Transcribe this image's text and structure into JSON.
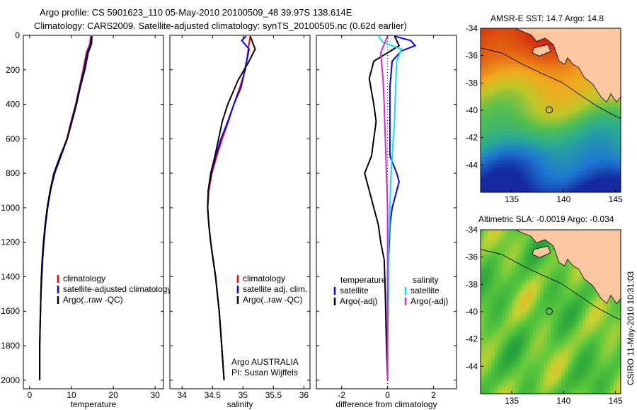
{
  "header": {
    "line1": "Argo profile: CS 5901623_110 05-May-2010 20100509_48 39.97S 138.614E",
    "line2": "Climatology: CARS2009. Satellite-adjusted climatology: synTS_20100505.nc (0.62d earlier)"
  },
  "side_caption": "CSIRO 11-May-2010 10:31:03",
  "maps": [
    {
      "title": "AMSR-E SST: 14.7 Argo: 14.8",
      "yticks": [
        -34,
        -36,
        -38,
        -40,
        -42,
        -44
      ],
      "xticks": [
        135,
        140,
        145
      ],
      "xlim": [
        132,
        145.5
      ],
      "ylim": [
        -46,
        -34
      ],
      "float_lon": 138.614,
      "float_lat": -39.97
    },
    {
      "title": "Altimetric SLA: -0.0019 Argo: -0.034",
      "yticks": [
        -34,
        -36,
        -38,
        -40,
        -42,
        -44
      ],
      "xticks": [
        135,
        140,
        145
      ],
      "xlim": [
        132,
        145.5
      ],
      "ylim": [
        -46,
        -34
      ],
      "float_lon": 138.614,
      "float_lat": -39.97
    }
  ],
  "colors": {
    "climatology": "#ff0000",
    "satellite": "#0000ff",
    "argo": "#000000",
    "satellite_sal": "#00e5ff",
    "argo_sal": "#e020e0"
  },
  "chart_data": [
    {
      "type": "line",
      "xlabel": "temperature",
      "ylabel": "",
      "xlim": [
        -1.5,
        32
      ],
      "ylim": [
        2050,
        0
      ],
      "xticks": [
        0,
        10,
        20,
        30
      ],
      "yticks": [
        0,
        200,
        400,
        600,
        800,
        1000,
        1200,
        1400,
        1600,
        1800,
        2000
      ],
      "legend": [
        "climatology",
        "satellite-adjusted climatology",
        "Argo(..raw -QC)"
      ],
      "series": [
        {
          "name": "climatology",
          "color": "#ff0000",
          "points": [
            [
              14.6,
              5
            ],
            [
              14.4,
              50
            ],
            [
              13.6,
              100
            ],
            [
              12.8,
              200
            ],
            [
              11.9,
              300
            ],
            [
              11.0,
              400
            ],
            [
              9.9,
              500
            ],
            [
              8.9,
              600
            ],
            [
              7.4,
              700
            ],
            [
              5.9,
              800
            ],
            [
              5.0,
              900
            ],
            [
              4.3,
              1000
            ],
            [
              3.8,
              1100
            ],
            [
              3.4,
              1200
            ],
            [
              3.1,
              1300
            ],
            [
              2.9,
              1400
            ],
            [
              2.7,
              1500
            ],
            [
              2.6,
              1600
            ],
            [
              2.5,
              1700
            ],
            [
              2.4,
              1800
            ],
            [
              2.4,
              1900
            ],
            [
              2.4,
              2000
            ]
          ]
        },
        {
          "name": "satellite-adjusted climatology",
          "color": "#0000ff",
          "points": [
            [
              14.8,
              5
            ],
            [
              14.6,
              50
            ],
            [
              13.8,
              100
            ],
            [
              13.0,
              200
            ],
            [
              12.0,
              300
            ],
            [
              11.1,
              400
            ],
            [
              10.0,
              500
            ],
            [
              9.0,
              600
            ],
            [
              7.5,
              700
            ],
            [
              6.0,
              800
            ],
            [
              5.0,
              900
            ],
            [
              4.3,
              1000
            ],
            [
              3.8,
              1100
            ],
            [
              3.4,
              1200
            ],
            [
              3.1,
              1300
            ],
            [
              2.9,
              1400
            ],
            [
              2.7,
              1500
            ],
            [
              2.6,
              1600
            ],
            [
              2.5,
              1700
            ],
            [
              2.4,
              1800
            ],
            [
              2.4,
              1900
            ],
            [
              2.4,
              2000
            ]
          ]
        },
        {
          "name": "Argo(..raw -QC)",
          "color": "#000000",
          "points": [
            [
              14.9,
              5
            ],
            [
              14.8,
              50
            ],
            [
              14.0,
              100
            ],
            [
              13.2,
              200
            ],
            [
              12.1,
              300
            ],
            [
              11.2,
              400
            ],
            [
              10.1,
              500
            ],
            [
              9.0,
              600
            ],
            [
              7.3,
              700
            ],
            [
              5.8,
              800
            ],
            [
              4.9,
              900
            ],
            [
              4.2,
              1000
            ],
            [
              3.7,
              1100
            ],
            [
              3.3,
              1200
            ],
            [
              3.0,
              1300
            ],
            [
              2.8,
              1400
            ],
            [
              2.7,
              1500
            ],
            [
              2.6,
              1600
            ],
            [
              2.5,
              1700
            ],
            [
              2.4,
              1800
            ],
            [
              2.4,
              1900
            ],
            [
              2.4,
              2000
            ]
          ]
        }
      ]
    },
    {
      "type": "line",
      "xlabel": "salinity",
      "ylabel": "",
      "xlim": [
        33.8,
        36.1
      ],
      "ylim": [
        2050,
        0
      ],
      "xticks": [
        34,
        34.5,
        35,
        35.5,
        36
      ],
      "yticks": [
        0,
        200,
        400,
        600,
        800,
        1000,
        1200,
        1400,
        1600,
        1800,
        2000
      ],
      "legend": [
        "climatology",
        "satellite adj. clim.",
        "Argo(..raw -QC)"
      ],
      "annotation": [
        "Argo AUSTRALIA",
        "PI: Susan Wijffels"
      ],
      "series": [
        {
          "name": "climatology",
          "color": "#ff0000",
          "points": [
            [
              35.12,
              5
            ],
            [
              35.1,
              50
            ],
            [
              35.08,
              100
            ],
            [
              35.04,
              200
            ],
            [
              34.95,
              300
            ],
            [
              34.85,
              400
            ],
            [
              34.76,
              500
            ],
            [
              34.66,
              600
            ],
            [
              34.57,
              700
            ],
            [
              34.49,
              800
            ],
            [
              34.44,
              900
            ],
            [
              34.42,
              1000
            ],
            [
              34.44,
              1100
            ],
            [
              34.47,
              1200
            ],
            [
              34.51,
              1300
            ],
            [
              34.55,
              1400
            ],
            [
              34.58,
              1500
            ],
            [
              34.61,
              1600
            ],
            [
              34.63,
              1700
            ],
            [
              34.65,
              1800
            ],
            [
              34.67,
              1900
            ],
            [
              34.69,
              2000
            ]
          ]
        },
        {
          "name": "satellite adj. clim.",
          "color": "#0000ff",
          "points": [
            [
              35.05,
              5
            ],
            [
              34.98,
              30
            ],
            [
              35.1,
              80
            ],
            [
              35.06,
              150
            ],
            [
              34.97,
              300
            ],
            [
              34.85,
              400
            ],
            [
              34.75,
              500
            ],
            [
              34.64,
              600
            ],
            [
              34.55,
              700
            ],
            [
              34.48,
              800
            ],
            [
              34.43,
              900
            ],
            [
              34.42,
              1000
            ],
            [
              34.44,
              1100
            ],
            [
              34.47,
              1200
            ],
            [
              34.51,
              1300
            ],
            [
              34.55,
              1400
            ],
            [
              34.58,
              1500
            ],
            [
              34.61,
              1600
            ],
            [
              34.63,
              1700
            ],
            [
              34.65,
              1800
            ],
            [
              34.67,
              1900
            ],
            [
              34.69,
              2000
            ]
          ]
        },
        {
          "name": "Argo(..raw -QC)",
          "color": "#000000",
          "points": [
            [
              35.12,
              5
            ],
            [
              35.2,
              80
            ],
            [
              35.1,
              150
            ],
            [
              34.92,
              260
            ],
            [
              34.75,
              400
            ],
            [
              34.66,
              500
            ],
            [
              34.6,
              600
            ],
            [
              34.54,
              700
            ],
            [
              34.47,
              800
            ],
            [
              34.43,
              900
            ],
            [
              34.42,
              1000
            ],
            [
              34.44,
              1100
            ],
            [
              34.47,
              1200
            ],
            [
              34.51,
              1300
            ],
            [
              34.55,
              1400
            ],
            [
              34.58,
              1500
            ],
            [
              34.61,
              1600
            ],
            [
              34.63,
              1700
            ],
            [
              34.65,
              1800
            ],
            [
              34.67,
              1900
            ],
            [
              34.69,
              2000
            ]
          ]
        }
      ]
    },
    {
      "type": "line",
      "xlabel": "difference from climatology",
      "ylabel": "",
      "xlim": [
        -3.1,
        3.0
      ],
      "ylim": [
        2050,
        0
      ],
      "xticks": [
        -2,
        0,
        2
      ],
      "yticks": [
        0,
        200,
        400,
        600,
        800,
        1000,
        1200,
        1400,
        1600,
        1800,
        2000
      ],
      "legend_groups": [
        {
          "heading": "temperature",
          "items": [
            "satellite",
            "Argo(-adj)"
          ]
        },
        {
          "heading": "salinity",
          "items": [
            "satellite",
            "Argo(-adj)"
          ]
        }
      ],
      "series": [
        {
          "name": "temperature satellite",
          "color": "#0000ff",
          "points": [
            [
              0.3,
              5
            ],
            [
              1.0,
              30
            ],
            [
              1.2,
              60
            ],
            [
              0.6,
              90
            ],
            [
              0.2,
              150
            ],
            [
              0.1,
              300
            ],
            [
              0.1,
              500
            ],
            [
              0.1,
              700
            ],
            [
              0.4,
              800
            ],
            [
              0.5,
              850
            ],
            [
              0.4,
              900
            ],
            [
              0.2,
              1000
            ],
            [
              0.1,
              1100
            ],
            [
              0.05,
              1300
            ],
            [
              0.0,
              1500
            ],
            [
              0.0,
              1800
            ],
            [
              0.0,
              2000
            ]
          ]
        },
        {
          "name": "temperature Argo(-adj)",
          "color": "#000000",
          "points": [
            [
              0.3,
              5
            ],
            [
              0.5,
              60
            ],
            [
              -0.6,
              150
            ],
            [
              -0.8,
              250
            ],
            [
              -0.6,
              400
            ],
            [
              -0.5,
              500
            ],
            [
              -0.6,
              600
            ],
            [
              -0.7,
              700
            ],
            [
              -1.0,
              800
            ],
            [
              -0.8,
              900
            ],
            [
              -0.6,
              1000
            ],
            [
              -0.4,
              1100
            ],
            [
              -0.3,
              1200
            ],
            [
              -0.15,
              1300
            ],
            [
              -0.1,
              1500
            ],
            [
              -0.05,
              1800
            ],
            [
              0.0,
              2000
            ]
          ]
        },
        {
          "name": "salinity satellite",
          "color": "#00e5ff",
          "points": [
            [
              -0.4,
              5
            ],
            [
              -0.2,
              40
            ],
            [
              0.6,
              80
            ],
            [
              0.4,
              150
            ],
            [
              0.35,
              300
            ],
            [
              0.3,
              500
            ],
            [
              0.2,
              700
            ],
            [
              0.15,
              800
            ],
            [
              0.1,
              1000
            ],
            [
              0.05,
              1200
            ],
            [
              0.05,
              1500
            ],
            [
              0.0,
              1800
            ],
            [
              0.0,
              2000
            ]
          ]
        },
        {
          "name": "salinity Argo(-adj)",
          "color": "#e020e0",
          "points": [
            [
              0.0,
              5
            ],
            [
              -0.3,
              100
            ],
            [
              -0.2,
              250
            ],
            [
              -0.15,
              400
            ],
            [
              -0.1,
              600
            ],
            [
              -0.05,
              800
            ],
            [
              0.0,
              1000
            ],
            [
              0.0,
              1500
            ],
            [
              0.0,
              2000
            ]
          ]
        }
      ]
    }
  ]
}
